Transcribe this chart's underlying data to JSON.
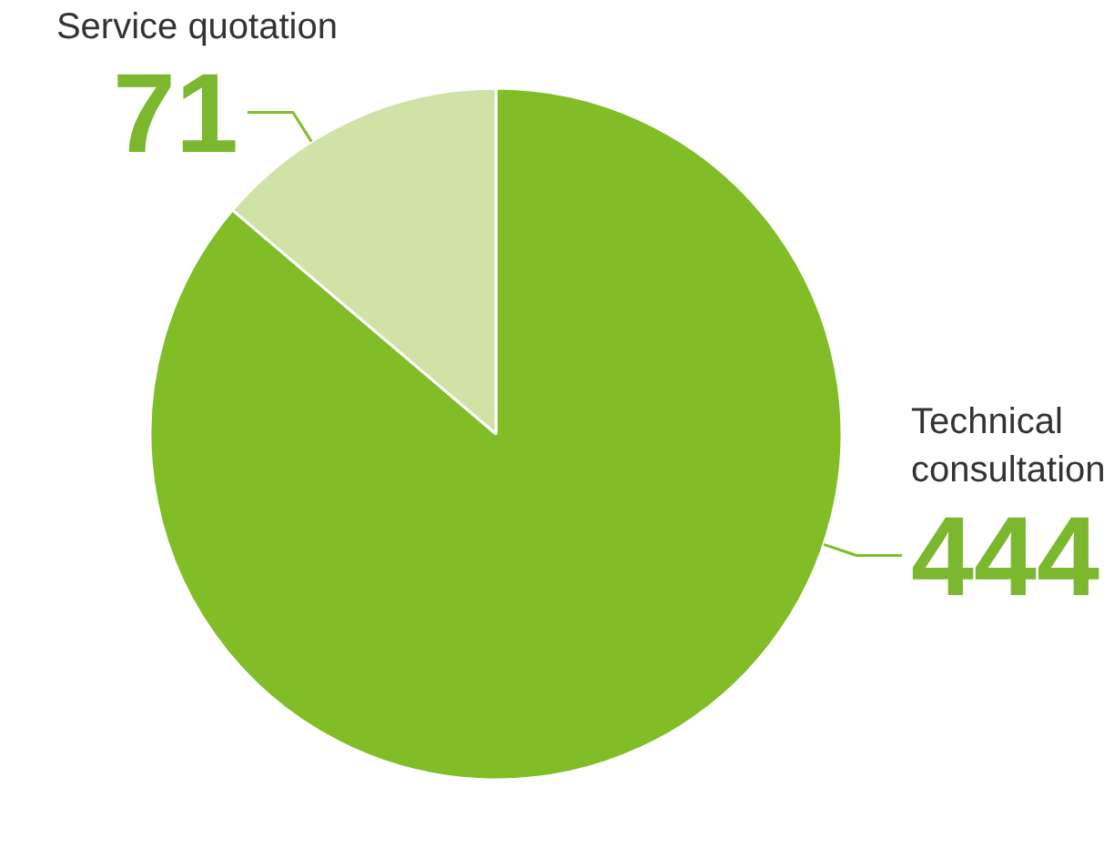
{
  "chart_data": {
    "type": "pie",
    "categories": [
      "Technical consultation",
      "Service quotation"
    ],
    "values": [
      444,
      71
    ],
    "colors": [
      "#80bd27",
      "#d1e2a7"
    ],
    "data_labels": true
  }
}
